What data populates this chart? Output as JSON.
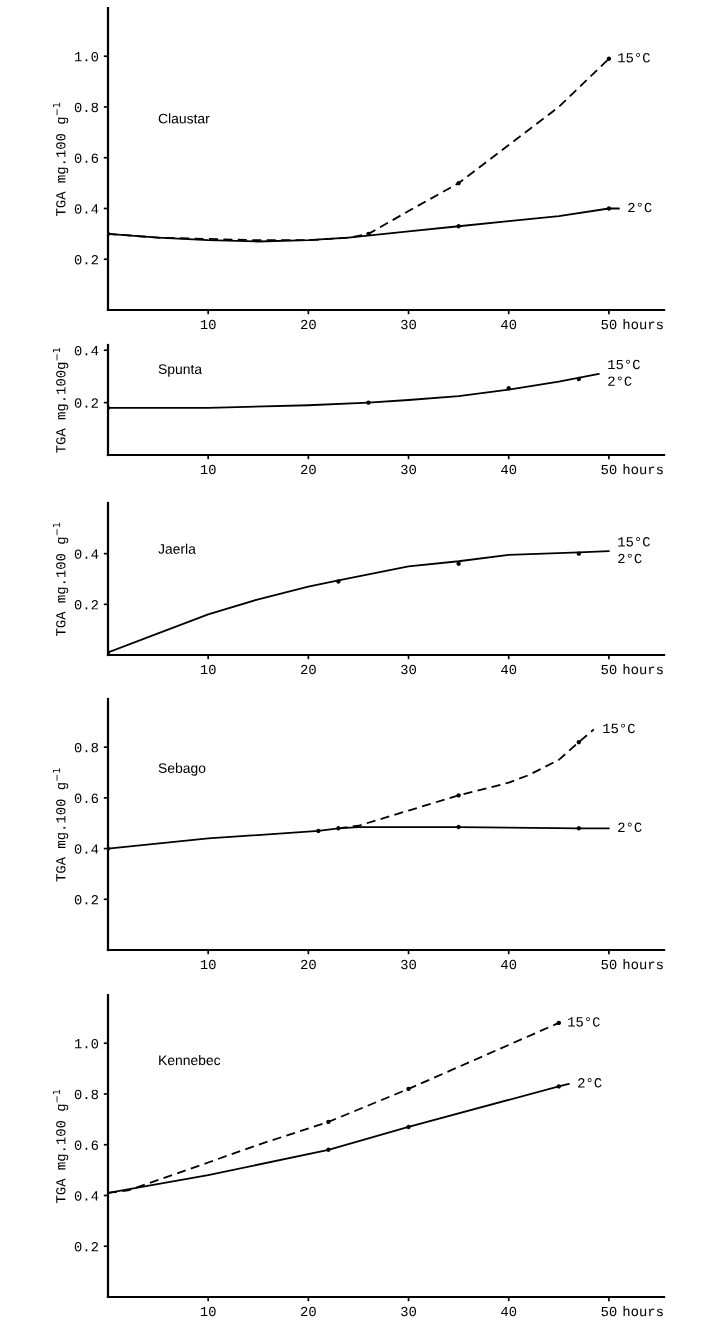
{
  "chart_data": [
    {
      "type": "line",
      "title": "Claustar",
      "xlabel": "hours",
      "ylabel": "TGA mg.100 g$^{−1}$",
      "xlim": [
        0,
        55.5
      ],
      "ylim": [
        0,
        1.19
      ],
      "xticks": [
        10,
        20,
        30,
        40,
        50
      ],
      "yticks": [
        0.2,
        0.4,
        0.6,
        0.8,
        {
          "value": 1,
          "label": "1.0"
        }
      ],
      "series": [
        {
          "name": "15°C",
          "color": "#000000",
          "line_style": "dashed",
          "x": [
            0,
            5,
            10,
            15,
            20,
            24,
            26,
            30,
            35,
            40,
            45,
            50
          ],
          "values": [
            0.3,
            0.285,
            0.28,
            0.275,
            0.275,
            0.285,
            0.3,
            0.39,
            0.5,
            0.65,
            0.8,
            0.99
          ]
        },
        {
          "name": "2°C",
          "color": "#000000",
          "line_style": "solid",
          "x": [
            0,
            5,
            10,
            15,
            20,
            24,
            30,
            35,
            40,
            45,
            50,
            51
          ],
          "values": [
            0.3,
            0.285,
            0.275,
            0.27,
            0.275,
            0.285,
            0.31,
            0.33,
            0.35,
            0.37,
            0.4,
            0.4
          ]
        },
        {
          "type": "scatter",
          "color": "#000000",
          "marker": "circle",
          "x": [
            0,
            26,
            35,
            35,
            50,
            50
          ],
          "values": [
            0.3,
            0.3,
            0.5,
            0.33,
            0.99,
            0.4
          ]
        }
      ]
    },
    {
      "type": "line",
      "title": "Spunta",
      "xlabel": "hours",
      "ylabel": "TGA mg.100g$^{−1}$",
      "xlim": [
        0,
        55.5
      ],
      "ylim": [
        0,
        0.42
      ],
      "xticks": [
        10,
        20,
        30,
        40,
        50
      ],
      "yticks": [
        0.2,
        0.4
      ],
      "annotations": [
        "15°C",
        "2°C"
      ],
      "series": [
        {
          "color": "#000000",
          "line_style": "solid",
          "x": [
            0,
            10,
            20,
            26,
            30,
            35,
            40,
            45,
            49
          ],
          "values": [
            0.18,
            0.18,
            0.19,
            0.2,
            0.21,
            0.225,
            0.25,
            0.28,
            0.31
          ]
        },
        {
          "type": "scatter",
          "color": "#000000",
          "marker": "circle",
          "x": [
            0,
            26,
            40,
            47
          ],
          "values": [
            0.18,
            0.2,
            0.255,
            0.29
          ]
        }
      ]
    },
    {
      "type": "line",
      "title": "Jaerla",
      "xlabel": "hours",
      "ylabel": "TGA mg.100 g$^{−1}$",
      "xlim": [
        0,
        55.5
      ],
      "ylim": [
        0,
        0.6
      ],
      "xticks": [
        10,
        20,
        30,
        40,
        50
      ],
      "yticks": [
        0.2,
        0.4
      ],
      "annotations": [
        "15°C",
        "2°C"
      ],
      "series": [
        {
          "color": "#000000",
          "line_style": "solid",
          "x": [
            0,
            5,
            10,
            15,
            20,
            23,
            30,
            35,
            40,
            47,
            50
          ],
          "values": [
            0.01,
            0.085,
            0.16,
            0.22,
            0.27,
            0.295,
            0.35,
            0.37,
            0.395,
            0.405,
            0.41
          ]
        },
        {
          "type": "scatter",
          "color": "#000000",
          "marker": "circle",
          "x": [
            0,
            23,
            35,
            47
          ],
          "values": [
            0.01,
            0.29,
            0.36,
            0.4
          ]
        }
      ]
    },
    {
      "type": "line",
      "title": "Sebago",
      "xlabel": "hours",
      "ylabel": "TGA mg.100 g$^{−1}$",
      "xlim": [
        0,
        55.5
      ],
      "ylim": [
        0,
        0.99
      ],
      "xticks": [
        10,
        20,
        30,
        40,
        50
      ],
      "yticks": [
        0.2,
        0.4,
        0.6,
        0.8
      ],
      "series": [
        {
          "name": "15°C",
          "color": "#000000",
          "line_style": "dashed",
          "x": [
            23,
            25,
            30,
            35,
            40,
            42,
            45,
            47,
            48.5
          ],
          "values": [
            0.48,
            0.49,
            0.55,
            0.61,
            0.66,
            0.69,
            0.75,
            0.82,
            0.87
          ]
        },
        {
          "name": "2°C",
          "color": "#000000",
          "line_style": "solid",
          "x": [
            0,
            10,
            21,
            23,
            25,
            35,
            47,
            50
          ],
          "values": [
            0.4,
            0.44,
            0.47,
            0.48,
            0.485,
            0.485,
            0.48,
            0.48
          ]
        },
        {
          "type": "scatter",
          "color": "#000000",
          "marker": "circle",
          "x": [
            0,
            21,
            23,
            35,
            35,
            47,
            47
          ],
          "values": [
            0.4,
            0.47,
            0.48,
            0.485,
            0.61,
            0.48,
            0.82
          ]
        }
      ]
    },
    {
      "type": "line",
      "title": "Kennebec",
      "xlabel": "hours",
      "ylabel": "TGA mg.100 g$^{−1}$",
      "xlim": [
        0,
        55.5
      ],
      "ylim": [
        0,
        1.19
      ],
      "xticks": [
        10,
        20,
        30,
        40,
        50
      ],
      "yticks": [
        0.2,
        0.4,
        0.6,
        0.8,
        {
          "value": 1,
          "label": "1.0"
        }
      ],
      "series": [
        {
          "name": "15°C",
          "color": "#000000",
          "line_style": "dashed",
          "x": [
            0,
            2,
            10,
            15,
            22,
            30,
            45
          ],
          "values": [
            0.41,
            0.42,
            0.53,
            0.6,
            0.69,
            0.82,
            1.08
          ]
        },
        {
          "name": "2°C",
          "color": "#000000",
          "line_style": "solid",
          "x": [
            0,
            10,
            22,
            30,
            45,
            46
          ],
          "values": [
            0.41,
            0.48,
            0.58,
            0.67,
            0.83,
            0.84
          ]
        },
        {
          "type": "scatter",
          "color": "#000000",
          "marker": "circle",
          "x": [
            22,
            22,
            30,
            30,
            45,
            45
          ],
          "values": [
            0.58,
            0.69,
            0.67,
            0.82,
            0.83,
            1.08
          ]
        }
      ]
    }
  ]
}
